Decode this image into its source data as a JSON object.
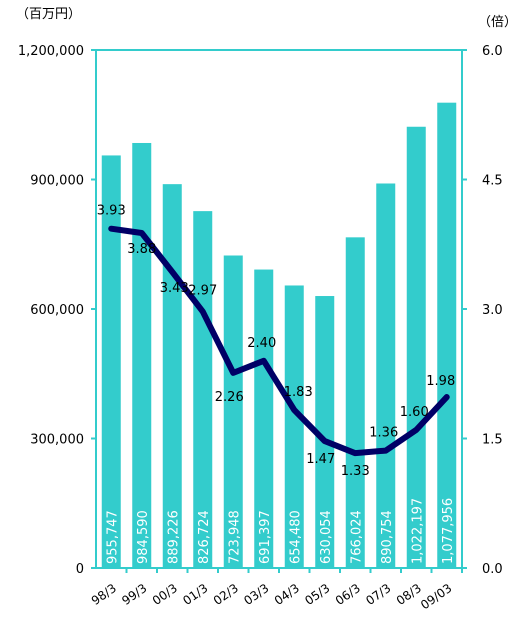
{
  "chart_data": {
    "type": "bar",
    "left_unit": "（百万円）",
    "right_unit": "（倍）",
    "categories": [
      "98/3",
      "99/3",
      "00/3",
      "01/3",
      "02/3",
      "03/3",
      "04/3",
      "05/3",
      "06/3",
      "07/3",
      "08/3",
      "09/03"
    ],
    "series": [
      {
        "type": "bar",
        "axis": "left",
        "color": "#33cccc",
        "values": [
          955747,
          984590,
          889226,
          826724,
          723948,
          691397,
          654480,
          630054,
          766024,
          890754,
          1022197,
          1077956
        ],
        "data_labels": [
          "955,747",
          "984,590",
          "889,226",
          "826,724",
          "723,948",
          "691,397",
          "654,480",
          "630,054",
          "766,024",
          "890,754",
          "1,022,197",
          "1,077,956"
        ]
      },
      {
        "type": "line",
        "axis": "right",
        "color": "#000066",
        "values": [
          3.93,
          3.88,
          3.43,
          2.97,
          2.26,
          2.4,
          1.83,
          1.47,
          1.33,
          1.36,
          1.6,
          1.98
        ],
        "data_labels": [
          "3.93",
          "3.88",
          "3.43",
          "2.97",
          "2.26",
          "2.40",
          "1.83",
          "1.47",
          "1.33",
          "1.36",
          "1.60",
          "1.98"
        ]
      }
    ],
    "left_axis": {
      "range": [
        0,
        1200000
      ],
      "ticks": [
        "0",
        "300,000",
        "600,000",
        "900,000",
        "1,200,000"
      ]
    },
    "right_axis": {
      "range": [
        0,
        6
      ],
      "ticks": [
        "0.0",
        "1.5",
        "3.0",
        "4.5",
        "6.0"
      ]
    },
    "frame_color": "#33cccc",
    "grid": false
  }
}
